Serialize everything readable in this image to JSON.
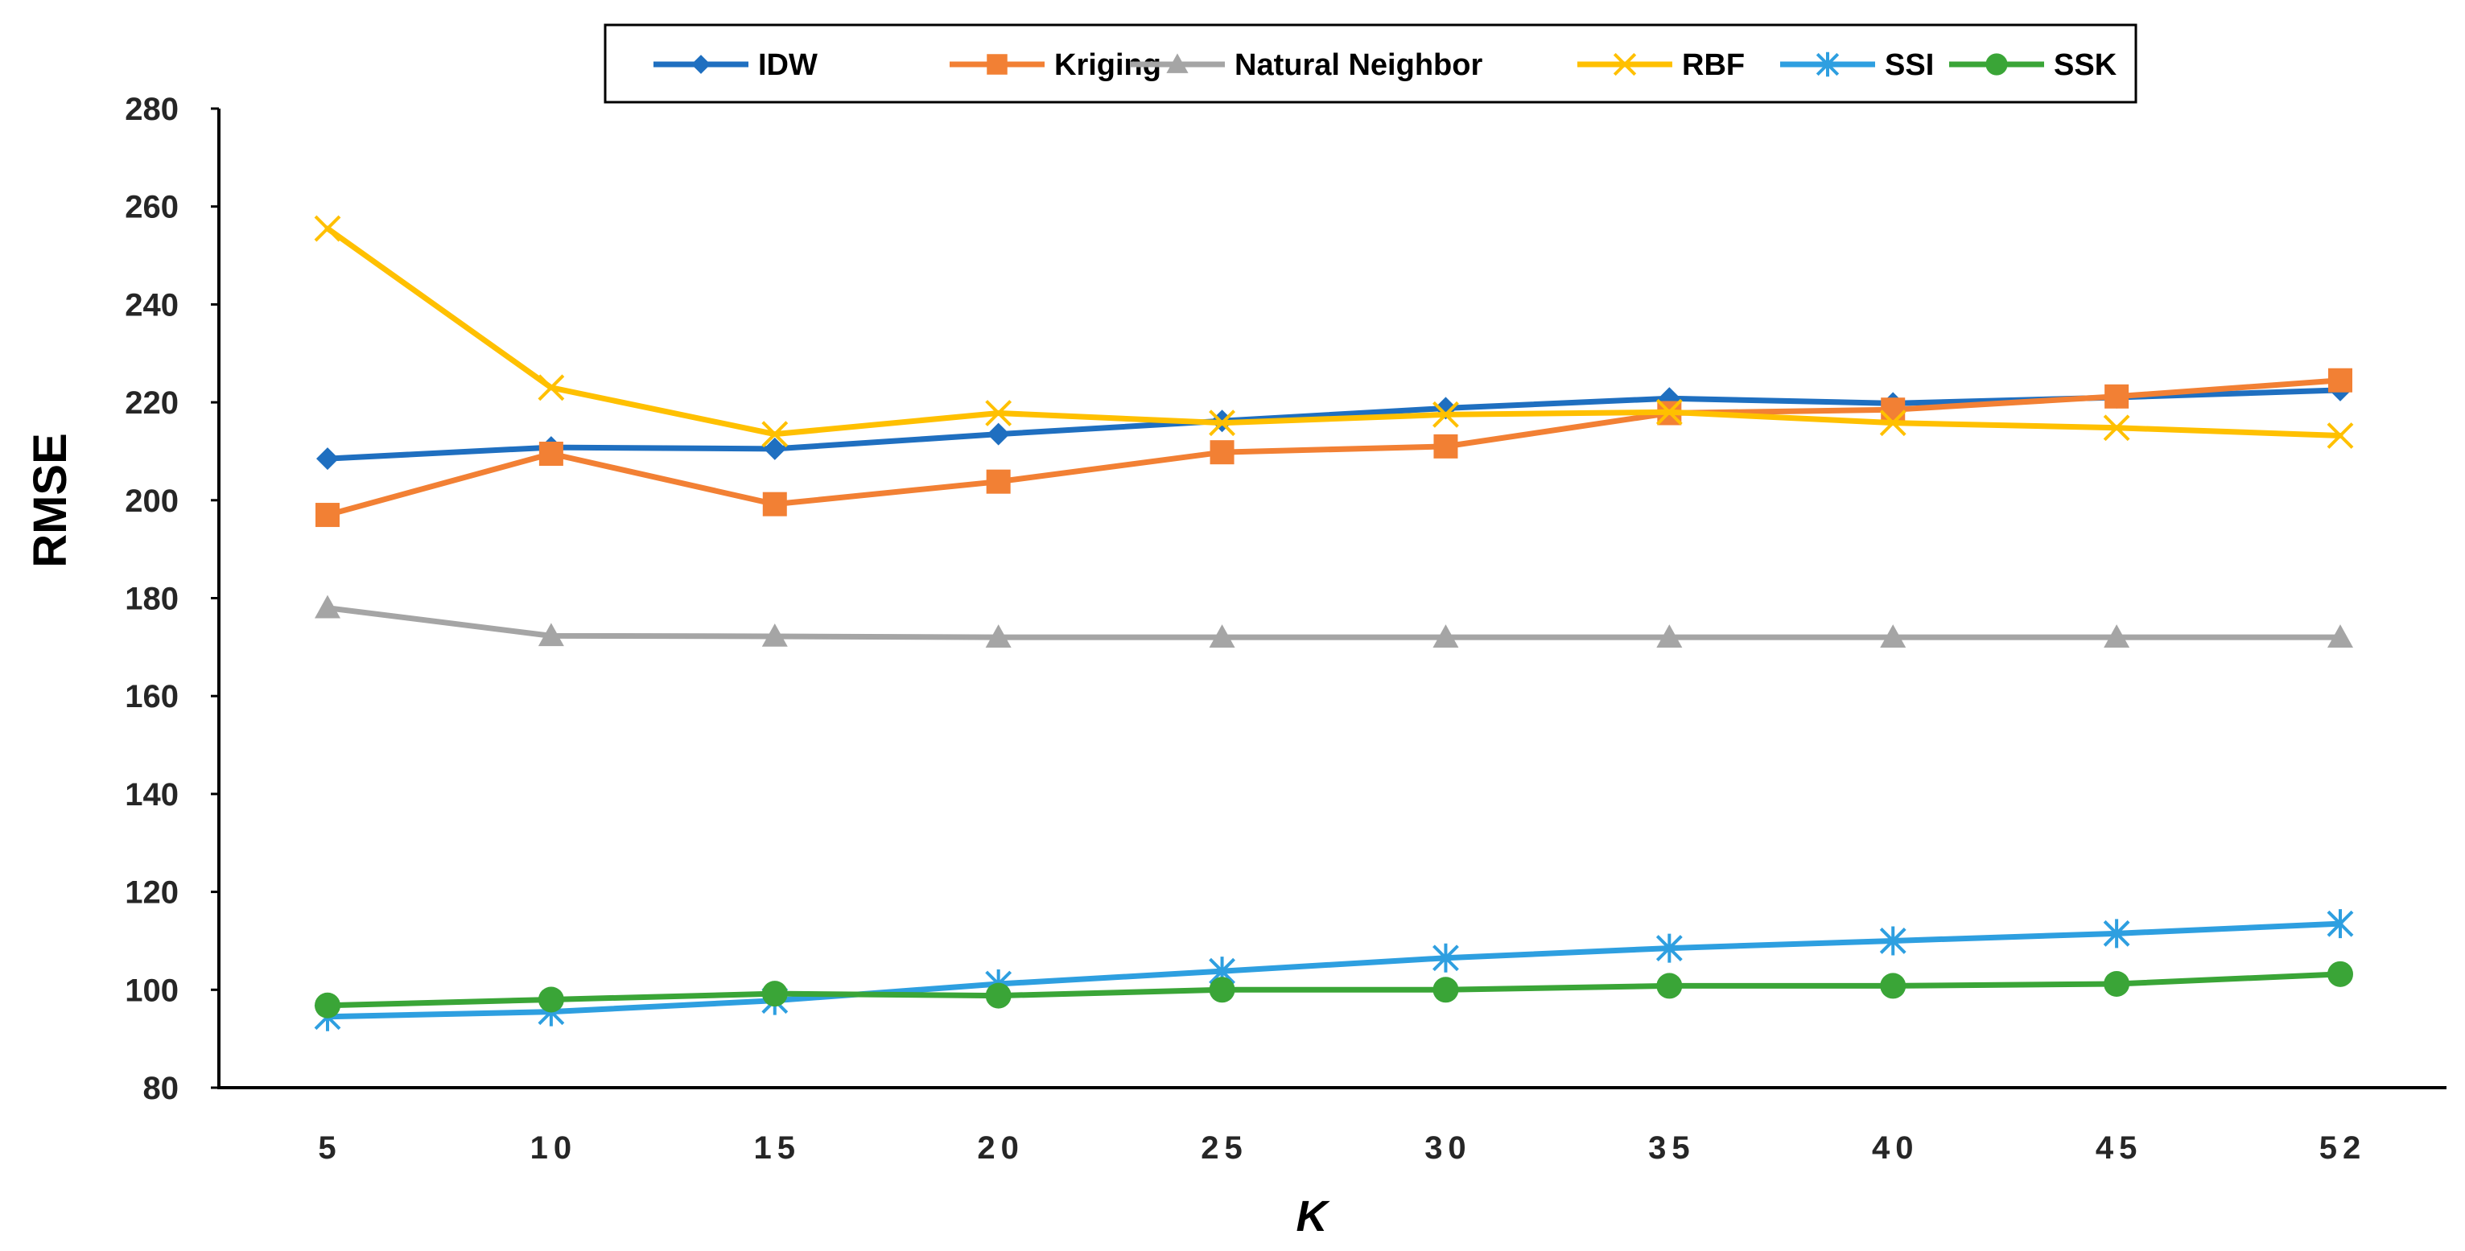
{
  "chart_data": {
    "type": "line",
    "title": "",
    "xlabel": "K",
    "ylabel": "RMSE",
    "categories": [
      "5",
      "10",
      "15",
      "20",
      "25",
      "30",
      "35",
      "40",
      "45",
      "52"
    ],
    "ylim": [
      80,
      280
    ],
    "yticks": [
      80,
      100,
      120,
      140,
      160,
      180,
      200,
      220,
      240,
      260,
      280
    ],
    "grid": false,
    "legend_position": "top-center",
    "series": [
      {
        "name": "IDW",
        "color": "#1f6fc0",
        "marker": "diamond",
        "values": [
          208.5,
          210.8,
          210.5,
          213.5,
          216.2,
          218.8,
          220.8,
          219.8,
          221.0,
          222.5
        ]
      },
      {
        "name": "Kriging",
        "color": "#f28034",
        "marker": "square",
        "values": [
          197.0,
          209.5,
          199.2,
          203.8,
          209.8,
          211.0,
          217.8,
          218.5,
          221.2,
          224.5
        ]
      },
      {
        "name": "Natural Neighbor",
        "color": "#a5a5a5",
        "marker": "triangle",
        "values": [
          178.0,
          172.3,
          172.2,
          172.0,
          172.0,
          172.0,
          172.0,
          172.0,
          172.0,
          172.0
        ]
      },
      {
        "name": "RBF",
        "color": "#ffc000",
        "marker": "x",
        "values": [
          255.5,
          223.0,
          213.5,
          217.8,
          215.8,
          217.5,
          218.0,
          215.8,
          214.8,
          213.2
        ]
      },
      {
        "name": "SSI",
        "color": "#2e9fe0",
        "marker": "asterisk",
        "values": [
          94.5,
          95.5,
          97.8,
          101.2,
          103.8,
          106.5,
          108.5,
          110.0,
          111.5,
          113.5
        ]
      },
      {
        "name": "SSK",
        "color": "#3aa537",
        "marker": "circle",
        "values": [
          96.8,
          98.0,
          99.2,
          98.8,
          100.0,
          100.0,
          100.8,
          100.8,
          101.2,
          103.2
        ]
      }
    ]
  }
}
